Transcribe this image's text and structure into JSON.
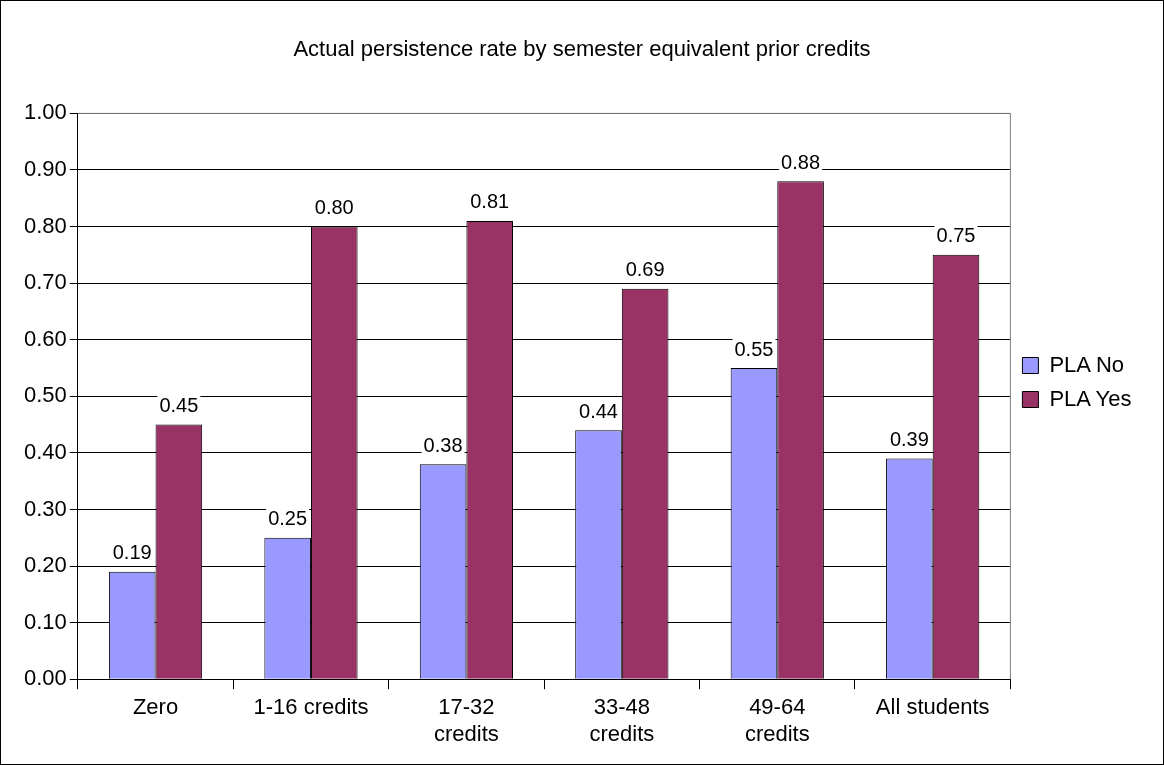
{
  "chart_data": {
    "type": "bar",
    "title": "Actual persistence rate by semester equivalent prior credits",
    "categories": [
      "Zero",
      "1-16 credits",
      "17-32 credits",
      "33-48 credits",
      "49-64 credits",
      "All students"
    ],
    "series": [
      {
        "name": "PLA No",
        "color": "#9999ff",
        "values": [
          0.19,
          0.25,
          0.38,
          0.44,
          0.55,
          0.39
        ],
        "value_labels": [
          "0.19",
          "0.25",
          "0.38",
          "0.44",
          "0.55",
          "0.39"
        ]
      },
      {
        "name": "PLA Yes",
        "color": "#993366",
        "values": [
          0.45,
          0.8,
          0.81,
          0.69,
          0.88,
          0.75
        ],
        "value_labels": [
          "0.45",
          "0.80",
          "0.81",
          "0.69",
          "0.88",
          "0.75"
        ]
      }
    ],
    "ylim": [
      0,
      1
    ],
    "yticks": [
      {
        "value": 0,
        "label": "0.00"
      },
      {
        "value": 0.1,
        "label": "0.10"
      },
      {
        "value": 0.2,
        "label": "0.20"
      },
      {
        "value": 0.3,
        "label": "0.30"
      },
      {
        "value": 0.4,
        "label": "0.40"
      },
      {
        "value": 0.5,
        "label": "0.50"
      },
      {
        "value": 0.6,
        "label": "0.60"
      },
      {
        "value": 0.7,
        "label": "0.70"
      },
      {
        "value": 0.8,
        "label": "0.80"
      },
      {
        "value": 0.9,
        "label": "0.90"
      },
      {
        "value": 1,
        "label": "1.00"
      }
    ],
    "grid": "y",
    "legend": "right"
  }
}
